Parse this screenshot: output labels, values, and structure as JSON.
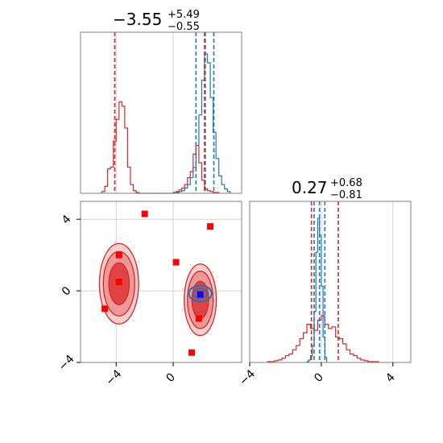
{
  "chart_data": [
    {
      "type": "histogram",
      "panel": "top-left",
      "title": {
        "value": "−3.55",
        "upper": "+5.49",
        "lower": "−0.55"
      },
      "x_range": [
        -6.5,
        4.8
      ],
      "grid": true,
      "series": [
        {
          "name": "",
          "color": "#1f77b4",
          "bins_x": [
            0.0,
            0.2,
            0.4,
            0.6,
            0.8,
            1.0,
            1.2,
            1.4,
            1.6,
            1.8,
            2.0,
            2.2,
            2.4,
            2.6,
            2.8,
            3.0,
            3.2,
            3.4,
            3.6,
            3.8,
            4.0
          ],
          "counts": [
            1,
            1,
            2,
            3,
            6,
            10,
            18,
            30,
            55,
            90,
            130,
            160,
            150,
            110,
            70,
            40,
            20,
            10,
            5,
            2
          ]
        },
        {
          "name": "",
          "color": "#d62728",
          "bins_x": [
            -5.0,
            -4.8,
            -4.6,
            -4.4,
            -4.2,
            -4.0,
            -3.8,
            -3.6,
            -3.4,
            -3.2,
            -3.0,
            -2.8,
            -2.6,
            -2.4,
            -2.2,
            -2.0,
            -1.8,
            -1.6,
            -1.4,
            -1.2,
            -1.0,
            -0.8,
            -0.6,
            -0.4,
            -0.2,
            0.0,
            0.2,
            0.4,
            0.6,
            0.8,
            1.0,
            1.2,
            1.4,
            1.6,
            1.8,
            2.0,
            2.2,
            2.4,
            2.6,
            2.8,
            3.0,
            3.2
          ],
          "counts": [
            2,
            8,
            28,
            30,
            60,
            85,
            105,
            100,
            75,
            30,
            10,
            3,
            1,
            0,
            0,
            0,
            0,
            0,
            0,
            0,
            0,
            0,
            0,
            0,
            0,
            1,
            2,
            4,
            6,
            10,
            18,
            25,
            45,
            55,
            35,
            15,
            5,
            3,
            2,
            1,
            1
          ]
        }
      ],
      "y_max": 185,
      "quantile_lines": [
        {
          "color": "#1f77b4",
          "values": [
            1.6,
            2.25,
            2.85
          ]
        },
        {
          "color": "#d62728",
          "values": [
            -4.1,
            2.2
          ]
        }
      ]
    },
    {
      "type": "scatter",
      "panel": "bottom-left",
      "x_range": [
        -6.5,
        4.8
      ],
      "y_range": [
        -4.0,
        5.0
      ],
      "x_ticks": [
        "−4",
        "0"
      ],
      "x_tick_values": [
        -4,
        0
      ],
      "y_ticks": [
        "−4",
        "0",
        "4"
      ],
      "y_tick_values": [
        -4,
        0,
        4
      ],
      "grid": true,
      "contour_centers": [
        {
          "x": -3.8,
          "y": 0.4,
          "rx": 1.1,
          "ry": 1.8,
          "color": "#d62728"
        },
        {
          "x": 1.9,
          "y": -0.5,
          "rx": 0.9,
          "ry": 1.6,
          "color": "#d62728"
        },
        {
          "x": 1.9,
          "y": -0.15,
          "rx": 0.8,
          "ry": 0.45,
          "color": "#1f77b4"
        }
      ],
      "markers": [
        {
          "x": -2.0,
          "y": 4.3,
          "color": "#ff0000"
        },
        {
          "x": 2.6,
          "y": 3.6,
          "color": "#ff0000"
        },
        {
          "x": -3.8,
          "y": 2.0,
          "color": "#ff0000"
        },
        {
          "x": 0.2,
          "y": 1.6,
          "color": "#ff0000"
        },
        {
          "x": -3.8,
          "y": 0.5,
          "color": "#ff0000"
        },
        {
          "x": -4.8,
          "y": -1.0,
          "color": "#ff0000"
        },
        {
          "x": 1.8,
          "y": -1.55,
          "color": "#ff0000"
        },
        {
          "x": 1.3,
          "y": -3.45,
          "color": "#ff0000"
        },
        {
          "x": 1.9,
          "y": -0.2,
          "color": "#0000ff"
        }
      ]
    },
    {
      "type": "histogram",
      "panel": "bottom-right",
      "title": {
        "value": "0.27",
        "upper": "+0.68",
        "lower": "−0.81"
      },
      "x_range": [
        -4.0,
        5.0
      ],
      "x_ticks": [
        "−4",
        "0",
        "4"
      ],
      "x_tick_values": [
        -4,
        0,
        4
      ],
      "grid": true,
      "series": [
        {
          "name": "",
          "color": "#1f77b4",
          "bins_x": [
            -0.8,
            -0.7,
            -0.6,
            -0.5,
            -0.4,
            -0.3,
            -0.2,
            -0.1,
            0.0,
            0.1,
            0.2,
            0.3
          ],
          "counts": [
            1,
            3,
            8,
            20,
            60,
            130,
            170,
            150,
            90,
            30,
            6
          ]
        },
        {
          "name": "",
          "color": "#d62728",
          "bins_x": [
            -3.0,
            -2.8,
            -2.6,
            -2.4,
            -2.2,
            -2.0,
            -1.8,
            -1.6,
            -1.4,
            -1.2,
            -1.0,
            -0.8,
            -0.6,
            -0.4,
            -0.2,
            0.0,
            0.2,
            0.4,
            0.6,
            0.8,
            1.0,
            1.2,
            1.4,
            1.6,
            1.8,
            2.0,
            2.2,
            2.4,
            2.6,
            2.8,
            3.0,
            3.2
          ],
          "counts": [
            1,
            1,
            2,
            3,
            5,
            8,
            10,
            15,
            20,
            28,
            35,
            45,
            40,
            38,
            50,
            55,
            45,
            40,
            42,
            30,
            28,
            22,
            15,
            10,
            8,
            5,
            3,
            2,
            1,
            1,
            1
          ]
        }
      ],
      "y_max": 190,
      "quantile_lines": [
        {
          "color": "#1f77b4",
          "values": [
            -0.4,
            -0.1,
            0.2
          ]
        },
        {
          "color": "#d62728",
          "values": [
            -0.55,
            0.95
          ]
        }
      ]
    }
  ]
}
